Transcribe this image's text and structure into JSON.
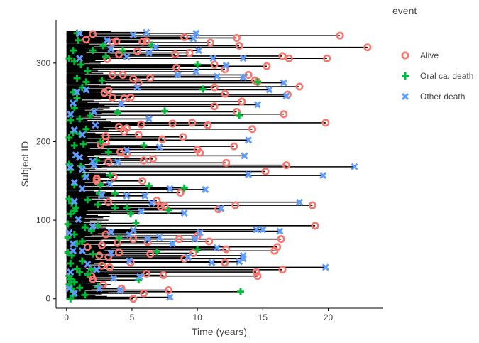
{
  "chart_data": {
    "type": "scatter",
    "subtype": "swimmer-plot",
    "title": "",
    "xlabel": "Time (years)",
    "ylabel": "Subject ID",
    "xlim": [
      -0.8,
      24.2
    ],
    "ylim": [
      -12,
      355
    ],
    "xticks": [
      0,
      5,
      10,
      15,
      20
    ],
    "yticks": [
      0,
      100,
      200,
      300
    ],
    "grid": false,
    "legend": {
      "title": "event",
      "position": "right"
    },
    "series": [
      {
        "name": "Alive",
        "color": "#F8766D",
        "marker": "circle-open",
        "points": [
          [
            5.1,
            0
          ],
          [
            5.9,
            7
          ],
          [
            7.8,
            11
          ],
          [
            4.2,
            13
          ],
          [
            2.8,
            18
          ],
          [
            2.0,
            25
          ],
          [
            1.9,
            29
          ],
          [
            7.4,
            30
          ],
          [
            14.6,
            29
          ],
          [
            14.5,
            34
          ],
          [
            6.1,
            32
          ],
          [
            16.5,
            37
          ],
          [
            3.3,
            40
          ],
          [
            2.7,
            42
          ],
          [
            4.9,
            46
          ],
          [
            12.1,
            46
          ],
          [
            9.0,
            51
          ],
          [
            3.2,
            53
          ],
          [
            2.5,
            55
          ],
          [
            6.4,
            57
          ],
          [
            9.7,
            58
          ],
          [
            4.0,
            59
          ],
          [
            15.9,
            61
          ],
          [
            12.2,
            63
          ],
          [
            1.6,
            66
          ],
          [
            2.7,
            68
          ],
          [
            16.1,
            66
          ],
          [
            3.9,
            71
          ],
          [
            6.2,
            72
          ],
          [
            10.9,
            73
          ],
          [
            5.1,
            76
          ],
          [
            8.6,
            76
          ],
          [
            16.4,
            76
          ],
          [
            10.0,
            80
          ],
          [
            3.0,
            82
          ],
          [
            19.0,
            93
          ],
          [
            7.5,
            118
          ],
          [
            11.6,
            114
          ],
          [
            12.9,
            119
          ],
          [
            7.2,
            117
          ],
          [
            8.7,
            135
          ],
          [
            6.9,
            125
          ],
          [
            18.8,
            119
          ],
          [
            3.2,
            123
          ],
          [
            2.3,
            150
          ],
          [
            5.8,
            150
          ],
          [
            2.3,
            153
          ],
          [
            3.6,
            155
          ],
          [
            15.2,
            162
          ],
          [
            3.2,
            174
          ],
          [
            16.8,
            170
          ],
          [
            5.9,
            176
          ],
          [
            6.6,
            178
          ],
          [
            12.2,
            173
          ],
          [
            4.6,
            184
          ],
          [
            10.2,
            186
          ],
          [
            10.0,
            190
          ],
          [
            4.1,
            187
          ],
          [
            7.3,
            203
          ],
          [
            3.0,
            200
          ],
          [
            12.8,
            194
          ],
          [
            2.6,
            196
          ],
          [
            3.0,
            207
          ],
          [
            5.5,
            209
          ],
          [
            8.9,
            206
          ],
          [
            14.2,
            216
          ],
          [
            4.4,
            213
          ],
          [
            4.6,
            217
          ],
          [
            4.0,
            219
          ],
          [
            10.8,
            221
          ],
          [
            5.7,
            222
          ],
          [
            8.1,
            223
          ],
          [
            9.6,
            224
          ],
          [
            19.8,
            224
          ],
          [
            16.6,
            235
          ],
          [
            13.0,
            238
          ],
          [
            4.9,
            256
          ],
          [
            11.3,
            245
          ],
          [
            13.4,
            251
          ],
          [
            4.4,
            255
          ],
          [
            16.9,
            260
          ],
          [
            3.5,
            256
          ],
          [
            2.9,
            262
          ],
          [
            3.2,
            265
          ],
          [
            11.3,
            269
          ],
          [
            12.1,
            261
          ],
          [
            17.8,
            270
          ],
          [
            5.5,
            275
          ],
          [
            14.6,
            276
          ],
          [
            14.4,
            278
          ],
          [
            5.1,
            280
          ],
          [
            6.4,
            281
          ],
          [
            12.1,
            292
          ],
          [
            13.9,
            285
          ],
          [
            4.3,
            285
          ],
          [
            3.5,
            285
          ],
          [
            15.3,
            296
          ],
          [
            8.4,
            294
          ],
          [
            11.3,
            298
          ],
          [
            17.0,
            306
          ],
          [
            16.5,
            309
          ],
          [
            9.4,
            313
          ],
          [
            3.1,
            305
          ],
          [
            4.0,
            311
          ],
          [
            13.2,
            322
          ],
          [
            23.0,
            320
          ],
          [
            19.9,
            306
          ],
          [
            5.4,
            315
          ],
          [
            11.0,
            326
          ],
          [
            6.1,
            328
          ],
          [
            3.8,
            328
          ],
          [
            2.0,
            337
          ],
          [
            5.8,
            327
          ],
          [
            13.0,
            332
          ],
          [
            9.0,
            333
          ],
          [
            20.9,
            335
          ],
          [
            3.5,
            326
          ],
          [
            1.5,
            330
          ],
          [
            8.3,
            311
          ]
        ]
      },
      {
        "name": "Oral ca. death",
        "color": "#00BA38",
        "marker": "cross",
        "points": [
          [
            0.3,
            0
          ],
          [
            0.5,
            4
          ],
          [
            1.4,
            5
          ],
          [
            0.5,
            9
          ],
          [
            0.4,
            13
          ],
          [
            1.0,
            14
          ],
          [
            2.4,
            15
          ],
          [
            0.2,
            18
          ],
          [
            0.6,
            21
          ],
          [
            0.3,
            25
          ],
          [
            0.2,
            29
          ],
          [
            1.6,
            31
          ],
          [
            5.5,
            24
          ],
          [
            13.3,
            9
          ],
          [
            1.0,
            34
          ],
          [
            0.8,
            38
          ],
          [
            1.9,
            37
          ],
          [
            0.3,
            45
          ],
          [
            1.2,
            48
          ],
          [
            0.4,
            55
          ],
          [
            2.0,
            57
          ],
          [
            0.1,
            59
          ],
          [
            6.9,
            60
          ],
          [
            10.0,
            63
          ],
          [
            0.8,
            70
          ],
          [
            0.1,
            78
          ],
          [
            0.6,
            82
          ],
          [
            1.4,
            91
          ],
          [
            2.4,
            93
          ],
          [
            0.1,
            95
          ],
          [
            5.3,
            96
          ],
          [
            4.9,
            108
          ],
          [
            0.3,
            108
          ],
          [
            0.6,
            112
          ],
          [
            4.6,
            116
          ],
          [
            7.8,
            113
          ],
          [
            0.7,
            116
          ],
          [
            1.6,
            126
          ],
          [
            2.5,
            134
          ],
          [
            2.6,
            145
          ],
          [
            3.7,
            134
          ],
          [
            6.3,
            144
          ],
          [
            9.0,
            141
          ],
          [
            1.4,
            156
          ],
          [
            3.3,
            157
          ],
          [
            0.3,
            164
          ],
          [
            1.1,
            169
          ],
          [
            2.3,
            176
          ],
          [
            3.2,
            187
          ],
          [
            0.6,
            195
          ],
          [
            1.3,
            197
          ],
          [
            2.6,
            200
          ],
          [
            5.9,
            195
          ],
          [
            0.2,
            205
          ],
          [
            1.0,
            210
          ],
          [
            0.5,
            212
          ],
          [
            1.5,
            216
          ],
          [
            0.3,
            227
          ],
          [
            1.0,
            229
          ],
          [
            1.8,
            233
          ],
          [
            3.9,
            237
          ],
          [
            0.6,
            243
          ],
          [
            7.5,
            239
          ],
          [
            13.2,
            233
          ],
          [
            0.8,
            256
          ],
          [
            10.4,
            267
          ],
          [
            0.5,
            263
          ],
          [
            1.2,
            269
          ],
          [
            1.5,
            276
          ],
          [
            0.8,
            281
          ],
          [
            2.7,
            278
          ],
          [
            1.1,
            298
          ],
          [
            0.6,
            302
          ],
          [
            0.2,
            306
          ],
          [
            2.0,
            316
          ],
          [
            3.0,
            308
          ],
          [
            0.5,
            316
          ],
          [
            4.3,
            316
          ],
          [
            6.5,
            323
          ],
          [
            0.9,
            329
          ],
          [
            0.8,
            338
          ],
          [
            2.8,
            322
          ],
          [
            14.6,
            276
          ],
          [
            10.0,
            298
          ],
          [
            1.6,
            290
          ],
          [
            2.4,
            120
          ],
          [
            1.2,
            73
          ],
          [
            4.0,
            77
          ],
          [
            1.9,
            87
          ],
          [
            0.4,
            122
          ],
          [
            0.2,
            127
          ],
          [
            0.6,
            145
          ],
          [
            3.7,
            116
          ],
          [
            0.2,
            171
          ]
        ]
      },
      {
        "name": "Other death",
        "color": "#619CFF",
        "marker": "x",
        "points": [
          [
            7.9,
            2
          ],
          [
            4.1,
            11
          ],
          [
            0.6,
            7
          ],
          [
            0.2,
            13
          ],
          [
            2.5,
            13
          ],
          [
            3.6,
            26
          ],
          [
            5.6,
            28
          ],
          [
            2.3,
            37
          ],
          [
            0.3,
            34
          ],
          [
            19.8,
            40
          ],
          [
            1.6,
            44
          ],
          [
            4.8,
            48
          ],
          [
            11.1,
            46
          ],
          [
            13.2,
            47
          ],
          [
            13.5,
            51
          ],
          [
            9.3,
            53
          ],
          [
            13.5,
            55
          ],
          [
            3.4,
            58
          ],
          [
            0.5,
            61
          ],
          [
            1.2,
            61
          ],
          [
            11.5,
            65
          ],
          [
            8.1,
            70
          ],
          [
            0.5,
            70
          ],
          [
            6.2,
            76
          ],
          [
            9.8,
            76
          ],
          [
            5.1,
            87
          ],
          [
            16.3,
            86
          ],
          [
            4.8,
            82
          ],
          [
            14.5,
            88
          ],
          [
            15.0,
            88
          ],
          [
            7.1,
            78
          ],
          [
            10.2,
            84
          ],
          [
            3.4,
            85
          ],
          [
            0.2,
            84
          ],
          [
            2.0,
            92
          ],
          [
            0.9,
            101
          ],
          [
            9.0,
            109
          ],
          [
            5.7,
            111
          ],
          [
            11.8,
            115
          ],
          [
            17.8,
            123
          ],
          [
            6.5,
            122
          ],
          [
            0.6,
            124
          ],
          [
            2.7,
            132
          ],
          [
            4.6,
            131
          ],
          [
            6.0,
            131
          ],
          [
            10.6,
            139
          ],
          [
            7.9,
            140
          ],
          [
            1.2,
            140
          ],
          [
            3.3,
            146
          ],
          [
            0.6,
            148
          ],
          [
            1.5,
            155
          ],
          [
            1.2,
            165
          ],
          [
            0.3,
            167
          ],
          [
            13.9,
            158
          ],
          [
            19.6,
            157
          ],
          [
            22.0,
            168
          ],
          [
            2.1,
            170
          ],
          [
            2.0,
            175
          ],
          [
            3.9,
            174
          ],
          [
            1.0,
            180
          ],
          [
            0.7,
            183
          ],
          [
            13.6,
            182
          ],
          [
            4.6,
            189
          ],
          [
            7.1,
            193
          ],
          [
            13.9,
            202
          ],
          [
            1.2,
            209
          ],
          [
            0.6,
            215
          ],
          [
            2.2,
            221
          ],
          [
            6.3,
            229
          ],
          [
            0.3,
            235
          ],
          [
            2.1,
            238
          ],
          [
            14.6,
            247
          ],
          [
            4.2,
            248
          ],
          [
            0.5,
            249
          ],
          [
            16.8,
            258
          ],
          [
            0.8,
            263
          ],
          [
            1.5,
            266
          ],
          [
            5.4,
            269
          ],
          [
            15.5,
            266
          ],
          [
            8.5,
            285
          ],
          [
            9.9,
            289
          ],
          [
            16.6,
            275
          ],
          [
            11.5,
            283
          ],
          [
            13.5,
            282
          ],
          [
            1.0,
            306
          ],
          [
            6.3,
            313
          ],
          [
            11.2,
            306
          ],
          [
            10.1,
            316
          ],
          [
            13.5,
            306
          ],
          [
            6.8,
            320
          ],
          [
            3.1,
            329
          ],
          [
            9.7,
            331
          ],
          [
            5.1,
            336
          ],
          [
            6.1,
            339
          ],
          [
            9.9,
            338
          ],
          [
            1.0,
            338
          ],
          [
            3.4,
            318
          ],
          [
            4.6,
            308
          ],
          [
            16.6,
            275
          ],
          [
            12.2,
            297
          ]
        ]
      }
    ]
  }
}
